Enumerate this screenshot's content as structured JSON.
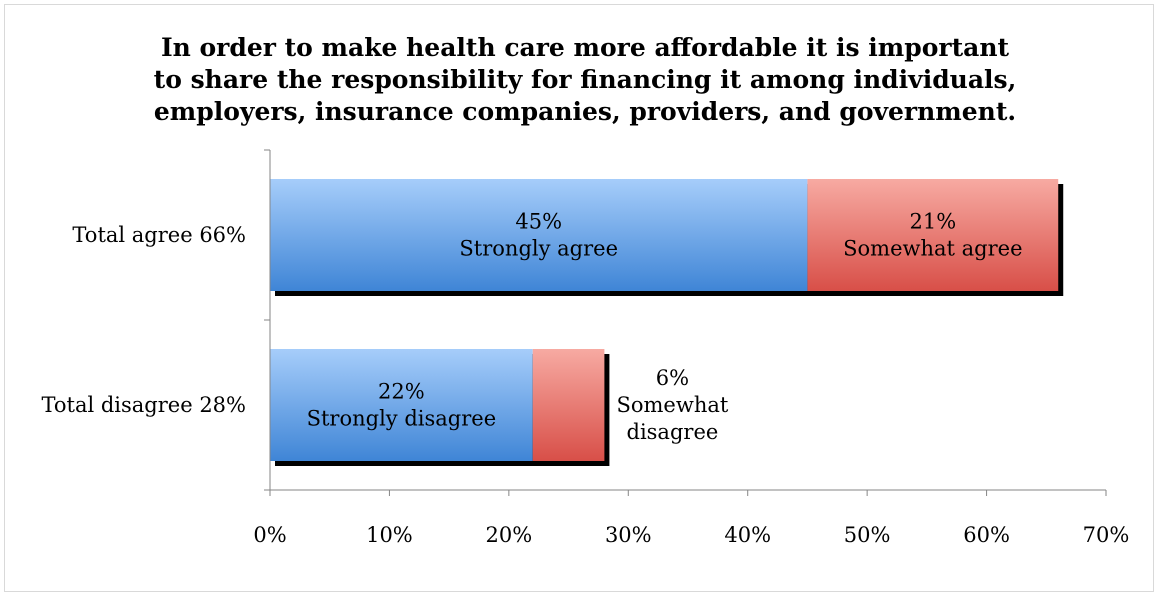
{
  "chart_data": {
    "type": "bar",
    "orientation": "horizontal",
    "stacked": true,
    "title": [
      "In order to make health care more affordable it is important",
      "to share the responsibility for financing it among individuals,",
      "employers, insurance companies, providers, and government."
    ],
    "categories": [
      "Total agree 66%",
      "Total disagree 28%"
    ],
    "series": [
      {
        "values": [
          45,
          22
        ],
        "color": "#4f8fd8",
        "labels": [
          "45%|Strongly agree",
          "22%|Strongly disagree"
        ]
      },
      {
        "values": [
          21,
          6
        ],
        "color": "#e07a72",
        "labels": [
          "21%|Somewhat agree",
          "6%|Somewhat|disagree"
        ]
      }
    ],
    "xlim": [
      0,
      70
    ],
    "xticks": [
      "0%",
      "10%",
      "20%",
      "30%",
      "40%",
      "50%",
      "60%",
      "70%"
    ],
    "grid": false,
    "legend": "none"
  }
}
